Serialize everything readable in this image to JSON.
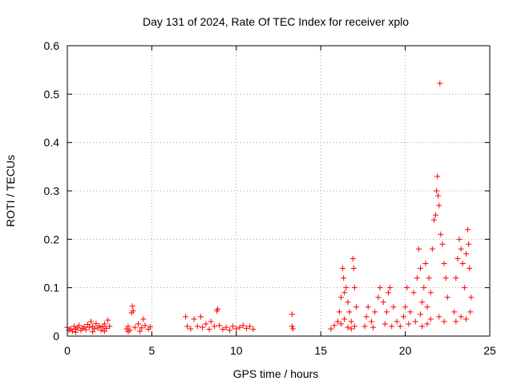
{
  "chart_data": {
    "type": "scatter",
    "title": "Day 131 of 2024, Rate Of TEC Index for receiver xplo",
    "xlabel": "GPS time / hours",
    "ylabel": "ROTI / TECUs",
    "xlim": [
      0,
      25
    ],
    "ylim": [
      0,
      0.6
    ],
    "xticks": [
      0,
      5,
      10,
      15,
      20,
      25
    ],
    "xtick_labels": [
      "0",
      "5",
      "10",
      "15",
      "20",
      "25"
    ],
    "yticks": [
      0,
      0.1,
      0.2,
      0.3,
      0.4,
      0.5,
      0.6
    ],
    "ytick_labels": [
      "0",
      "0.1",
      "0.2",
      "0.3",
      "0.4",
      "0.5",
      "0.6"
    ],
    "grid": true,
    "marker": "+",
    "color": "#ff0000",
    "series": [
      {
        "points": [
          [
            0.0,
            0.018
          ],
          [
            0.1,
            0.012
          ],
          [
            0.2,
            0.015
          ],
          [
            0.3,
            0.01
          ],
          [
            0.4,
            0.02
          ],
          [
            0.5,
            0.014
          ],
          [
            0.6,
            0.017
          ],
          [
            0.7,
            0.022
          ],
          [
            0.8,
            0.012
          ],
          [
            0.9,
            0.016
          ],
          [
            1.0,
            0.019
          ],
          [
            1.1,
            0.013
          ],
          [
            1.2,
            0.024
          ],
          [
            1.3,
            0.018
          ],
          [
            1.4,
            0.03
          ],
          [
            1.5,
            0.02
          ],
          [
            1.6,
            0.015
          ],
          [
            1.7,
            0.026
          ],
          [
            1.8,
            0.017
          ],
          [
            1.9,
            0.021
          ],
          [
            2.0,
            0.012
          ],
          [
            2.1,
            0.019
          ],
          [
            2.2,
            0.025
          ],
          [
            2.3,
            0.016
          ],
          [
            2.4,
            0.033
          ],
          [
            2.5,
            0.02
          ],
          [
            0.5,
            0.008
          ],
          [
            1.5,
            0.009
          ],
          [
            2.2,
            0.01
          ],
          [
            3.5,
            0.015
          ],
          [
            3.6,
            0.02
          ],
          [
            3.7,
            0.012
          ],
          [
            3.8,
            0.048
          ],
          [
            3.85,
            0.062
          ],
          [
            3.9,
            0.052
          ],
          [
            4.0,
            0.018
          ],
          [
            4.2,
            0.025
          ],
          [
            4.4,
            0.017
          ],
          [
            4.5,
            0.035
          ],
          [
            4.6,
            0.022
          ],
          [
            4.8,
            0.014
          ],
          [
            4.9,
            0.019
          ],
          [
            4.3,
            0.01
          ],
          [
            3.6,
            0.009
          ],
          [
            7.0,
            0.04
          ],
          [
            7.1,
            0.02
          ],
          [
            7.3,
            0.015
          ],
          [
            7.5,
            0.035
          ],
          [
            7.7,
            0.02
          ],
          [
            7.9,
            0.04
          ],
          [
            8.0,
            0.018
          ],
          [
            8.2,
            0.025
          ],
          [
            8.4,
            0.014
          ],
          [
            8.5,
            0.03
          ],
          [
            8.7,
            0.02
          ],
          [
            8.85,
            0.052
          ],
          [
            8.9,
            0.056
          ],
          [
            9.0,
            0.022
          ],
          [
            9.2,
            0.014
          ],
          [
            9.4,
            0.018
          ],
          [
            9.6,
            0.012
          ],
          [
            9.8,
            0.02
          ],
          [
            10.0,
            0.015
          ],
          [
            10.2,
            0.018
          ],
          [
            10.4,
            0.022
          ],
          [
            10.6,
            0.016
          ],
          [
            10.8,
            0.02
          ],
          [
            11.0,
            0.014
          ],
          [
            13.3,
            0.045
          ],
          [
            13.3,
            0.02
          ],
          [
            13.35,
            0.015
          ],
          [
            15.6,
            0.015
          ],
          [
            15.8,
            0.022
          ],
          [
            16.0,
            0.03
          ],
          [
            16.1,
            0.05
          ],
          [
            16.2,
            0.08
          ],
          [
            16.3,
            0.14
          ],
          [
            16.35,
            0.12
          ],
          [
            16.4,
            0.09
          ],
          [
            16.5,
            0.1
          ],
          [
            16.6,
            0.07
          ],
          [
            16.7,
            0.05
          ],
          [
            16.8,
            0.03
          ],
          [
            16.9,
            0.16
          ],
          [
            16.95,
            0.14
          ],
          [
            17.0,
            0.1
          ],
          [
            17.1,
            0.06
          ],
          [
            16.2,
            0.025
          ],
          [
            16.6,
            0.018
          ],
          [
            17.0,
            0.02
          ],
          [
            16.4,
            0.035
          ],
          [
            16.8,
            0.015
          ],
          [
            17.6,
            0.02
          ],
          [
            17.7,
            0.04
          ],
          [
            17.8,
            0.06
          ],
          [
            18.0,
            0.03
          ],
          [
            18.2,
            0.05
          ],
          [
            18.4,
            0.08
          ],
          [
            18.5,
            0.1
          ],
          [
            18.7,
            0.07
          ],
          [
            18.9,
            0.05
          ],
          [
            19.0,
            0.09
          ],
          [
            19.1,
            0.1
          ],
          [
            19.3,
            0.06
          ],
          [
            19.5,
            0.03
          ],
          [
            18.1,
            0.018
          ],
          [
            18.8,
            0.025
          ],
          [
            19.2,
            0.02
          ],
          [
            19.7,
            0.02
          ],
          [
            19.9,
            0.04
          ],
          [
            20.0,
            0.06
          ],
          [
            20.1,
            0.1
          ],
          [
            20.3,
            0.05
          ],
          [
            20.5,
            0.09
          ],
          [
            20.7,
            0.12
          ],
          [
            20.8,
            0.18
          ],
          [
            20.9,
            0.14
          ],
          [
            21.0,
            0.07
          ],
          [
            21.1,
            0.1
          ],
          [
            21.2,
            0.15
          ],
          [
            21.3,
            0.06
          ],
          [
            21.4,
            0.12
          ],
          [
            21.5,
            0.09
          ],
          [
            21.6,
            0.18
          ],
          [
            21.7,
            0.24
          ],
          [
            21.8,
            0.25
          ],
          [
            21.85,
            0.3
          ],
          [
            21.9,
            0.33
          ],
          [
            21.95,
            0.29
          ],
          [
            22.0,
            0.27
          ],
          [
            22.05,
            0.522
          ],
          [
            22.1,
            0.21
          ],
          [
            22.2,
            0.19
          ],
          [
            22.3,
            0.15
          ],
          [
            22.4,
            0.12
          ],
          [
            22.5,
            0.08
          ],
          [
            20.2,
            0.025
          ],
          [
            20.6,
            0.03
          ],
          [
            21.0,
            0.02
          ],
          [
            21.5,
            0.035
          ],
          [
            22.0,
            0.04
          ],
          [
            22.3,
            0.03
          ],
          [
            20.9,
            0.045
          ],
          [
            21.3,
            0.025
          ],
          [
            22.9,
            0.05
          ],
          [
            23.0,
            0.12
          ],
          [
            23.1,
            0.16
          ],
          [
            23.2,
            0.2
          ],
          [
            23.3,
            0.18
          ],
          [
            23.4,
            0.15
          ],
          [
            23.5,
            0.1
          ],
          [
            23.6,
            0.17
          ],
          [
            23.7,
            0.22
          ],
          [
            23.75,
            0.19
          ],
          [
            23.8,
            0.14
          ],
          [
            23.9,
            0.08
          ],
          [
            23.0,
            0.03
          ],
          [
            23.3,
            0.04
          ],
          [
            23.6,
            0.035
          ],
          [
            23.85,
            0.05
          ]
        ]
      }
    ]
  }
}
